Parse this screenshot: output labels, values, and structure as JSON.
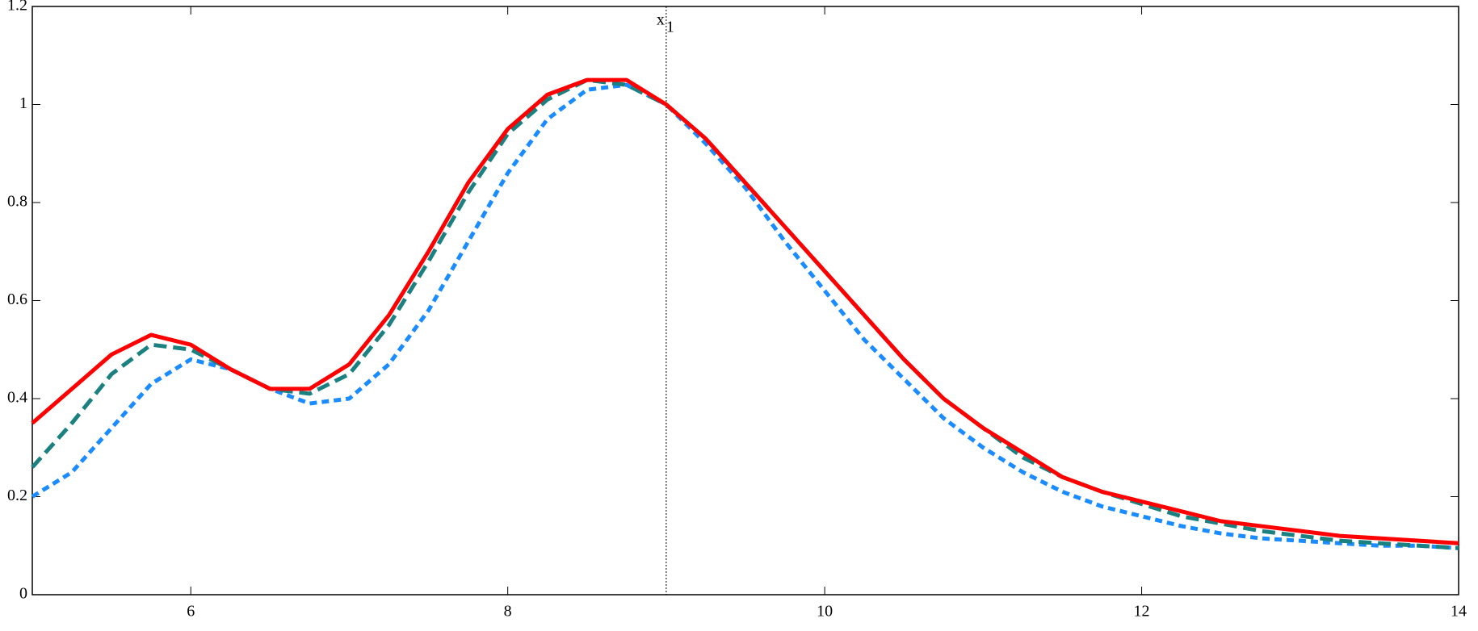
{
  "chart_data": {
    "type": "line",
    "x": [
      5,
      5.25,
      5.5,
      5.75,
      6,
      6.25,
      6.5,
      6.75,
      7,
      7.25,
      7.5,
      7.75,
      8,
      8.25,
      8.5,
      8.75,
      9,
      9.25,
      9.5,
      9.75,
      10,
      10.25,
      10.5,
      10.75,
      11,
      11.25,
      11.5,
      11.75,
      12,
      12.25,
      12.5,
      12.75,
      13,
      13.25,
      13.5,
      13.75,
      14
    ],
    "series": [
      {
        "color": "#1a8cff",
        "style": "short-dash",
        "values": [
          0.2,
          0.25,
          0.34,
          0.43,
          0.48,
          0.46,
          0.42,
          0.39,
          0.4,
          0.47,
          0.58,
          0.72,
          0.86,
          0.97,
          1.03,
          1.04,
          1.0,
          0.92,
          0.83,
          0.72,
          0.62,
          0.52,
          0.44,
          0.36,
          0.3,
          0.25,
          0.21,
          0.18,
          0.16,
          0.14,
          0.125,
          0.115,
          0.11,
          0.105,
          0.1,
          0.1,
          0.095
        ]
      },
      {
        "color": "#1a8080",
        "style": "dash",
        "values": [
          0.26,
          0.35,
          0.45,
          0.51,
          0.5,
          0.46,
          0.42,
          0.41,
          0.45,
          0.55,
          0.68,
          0.82,
          0.94,
          1.01,
          1.05,
          1.04,
          1.0,
          0.93,
          0.84,
          0.75,
          0.66,
          0.57,
          0.48,
          0.4,
          0.34,
          0.28,
          0.24,
          0.21,
          0.185,
          0.16,
          0.145,
          0.13,
          0.12,
          0.11,
          0.105,
          0.1,
          0.095
        ]
      },
      {
        "color": "#ff0000",
        "style": "solid",
        "values": [
          0.35,
          0.42,
          0.49,
          0.53,
          0.51,
          0.46,
          0.42,
          0.42,
          0.47,
          0.57,
          0.7,
          0.84,
          0.95,
          1.02,
          1.05,
          1.05,
          1.0,
          0.93,
          0.84,
          0.75,
          0.66,
          0.57,
          0.48,
          0.4,
          0.34,
          0.29,
          0.24,
          0.21,
          0.19,
          0.17,
          0.15,
          0.14,
          0.13,
          0.12,
          0.115,
          0.11,
          0.105
        ]
      }
    ],
    "xlim": [
      5,
      14
    ],
    "xticks": [
      6,
      8,
      10,
      12,
      14
    ],
    "ylim": [
      0,
      1.2
    ],
    "yticks": [
      0,
      0.2,
      0.4,
      0.6,
      0.8,
      1,
      1.2
    ],
    "grid": false,
    "annotations": [
      {
        "x": 9,
        "text": "x",
        "sub": "1"
      }
    ]
  }
}
